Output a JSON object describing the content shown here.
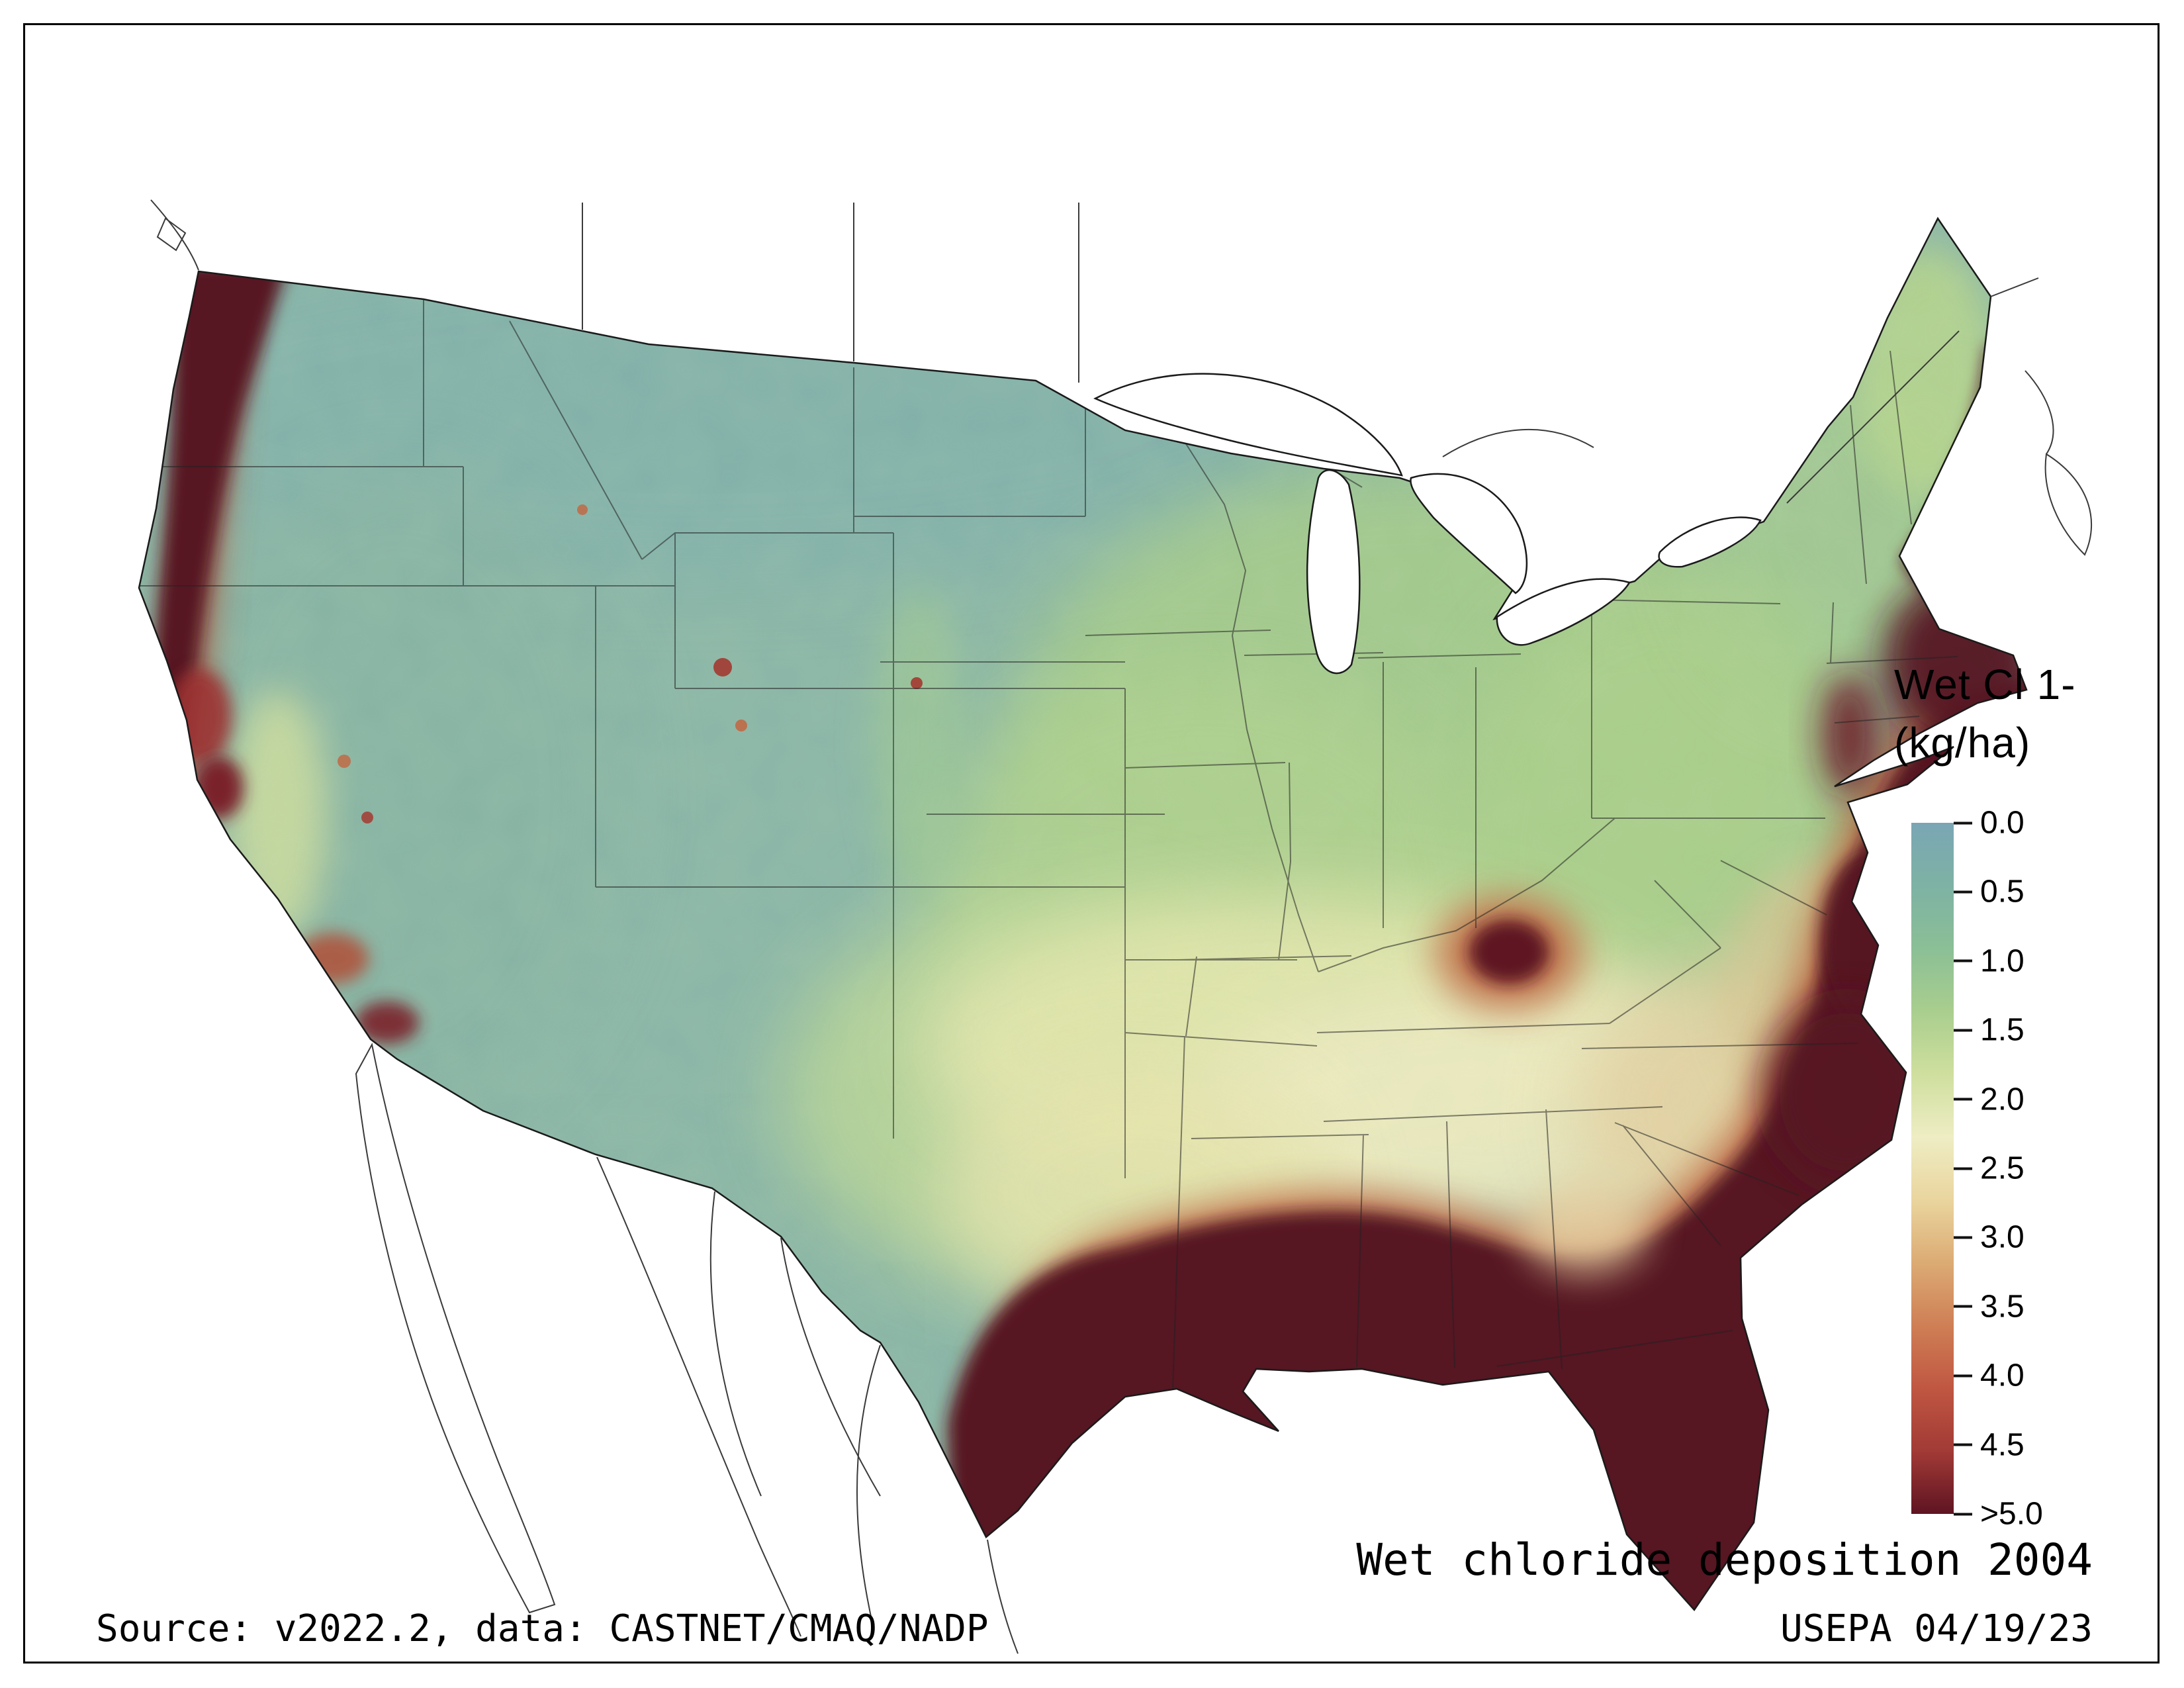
{
  "legend": {
    "title_line1": "Wet Cl 1-",
    "title_line2": "(kg/ha)",
    "unit_ticks": [
      "0.0",
      "0.5",
      "1.0",
      "1.5",
      "2.0",
      "2.5",
      "3.0",
      "3.5",
      "4.0",
      "4.5",
      ">5.0"
    ],
    "gradient_colors": [
      "#7aa6b4",
      "#7eb2a4",
      "#8bbf96",
      "#a9ce8e",
      "#cfdf9e",
      "#eeedc4",
      "#ead59e",
      "#dcab74",
      "#cf7f55",
      "#c05742",
      "#a23a36",
      "#5e1422"
    ]
  },
  "captions": {
    "map_title": "Wet chloride deposition 2004",
    "source": "Source: v2022.2, data: CASTNET/CMAQ/NADP",
    "agency": "USEPA 04/19/23"
  },
  "map": {
    "palette": {
      "low_teal": "#8ab5a7",
      "mid_green": "#a5cb8b",
      "cream": "#eeedc4",
      "transition_orange": "#c06a45",
      "high_maroon": "#571220"
    }
  }
}
